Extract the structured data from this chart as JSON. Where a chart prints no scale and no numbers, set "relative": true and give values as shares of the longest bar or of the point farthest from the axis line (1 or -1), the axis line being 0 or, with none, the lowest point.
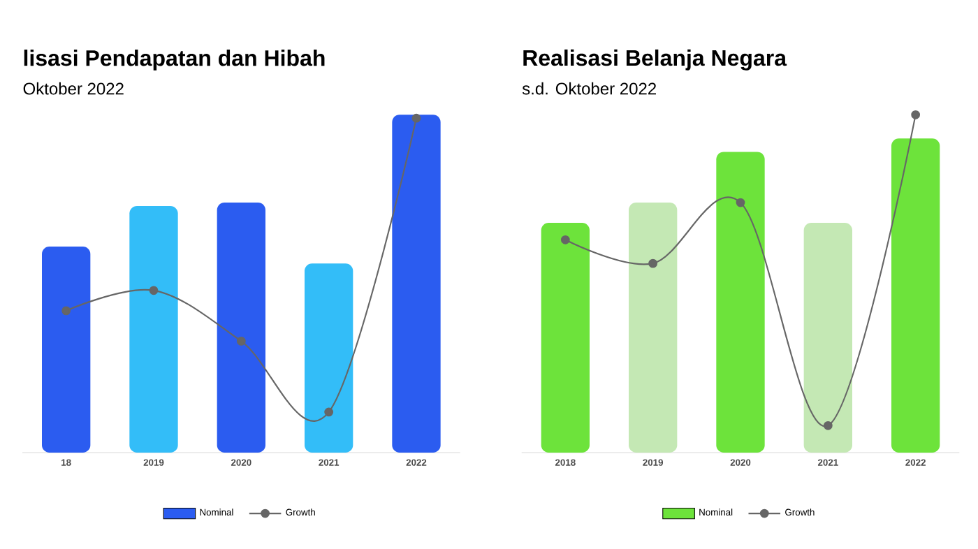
{
  "chart_data": [
    {
      "type": "bar",
      "title": "lisasi Pendapatan dan Hibah",
      "subtitle": "Oktober 2022",
      "relative": true,
      "categories": [
        "18",
        "2019",
        "2020",
        "2021",
        "2022"
      ],
      "legend": "bottom",
      "series": [
        {
          "name": "Nominal",
          "colors": [
            "#2b5cf0",
            "#33bdf8",
            "#2b5cf0",
            "#33bdf8",
            "#2b5cf0"
          ],
          "values": [
            0.61,
            0.73,
            0.74,
            0.56,
            1
          ]
        },
        {
          "name": "Growth",
          "type": "line",
          "color": "#666666",
          "marker": "circle",
          "values": [
            0.42,
            0.48,
            0.33,
            0.12,
            0.99
          ]
        }
      ]
    },
    {
      "type": "bar",
      "title": "Realisasi Belanja Negara",
      "subtitle": "s.d. Oktober 2022",
      "relative": true,
      "categories": [
        "2018",
        "2019",
        "2020",
        "2021",
        "2022"
      ],
      "legend": "bottom",
      "series": [
        {
          "name": "Nominal",
          "colors": [
            "#6de33b",
            "#c4e8b4",
            "#6de33b",
            "#c4e8b4",
            "#6de33b"
          ],
          "values": [
            0.68,
            0.74,
            0.89,
            0.68,
            0.93
          ]
        },
        {
          "name": "Growth",
          "type": "line",
          "color": "#666666",
          "marker": "circle",
          "values": [
            0.63,
            0.56,
            0.74,
            0.08,
            1
          ]
        }
      ]
    }
  ]
}
